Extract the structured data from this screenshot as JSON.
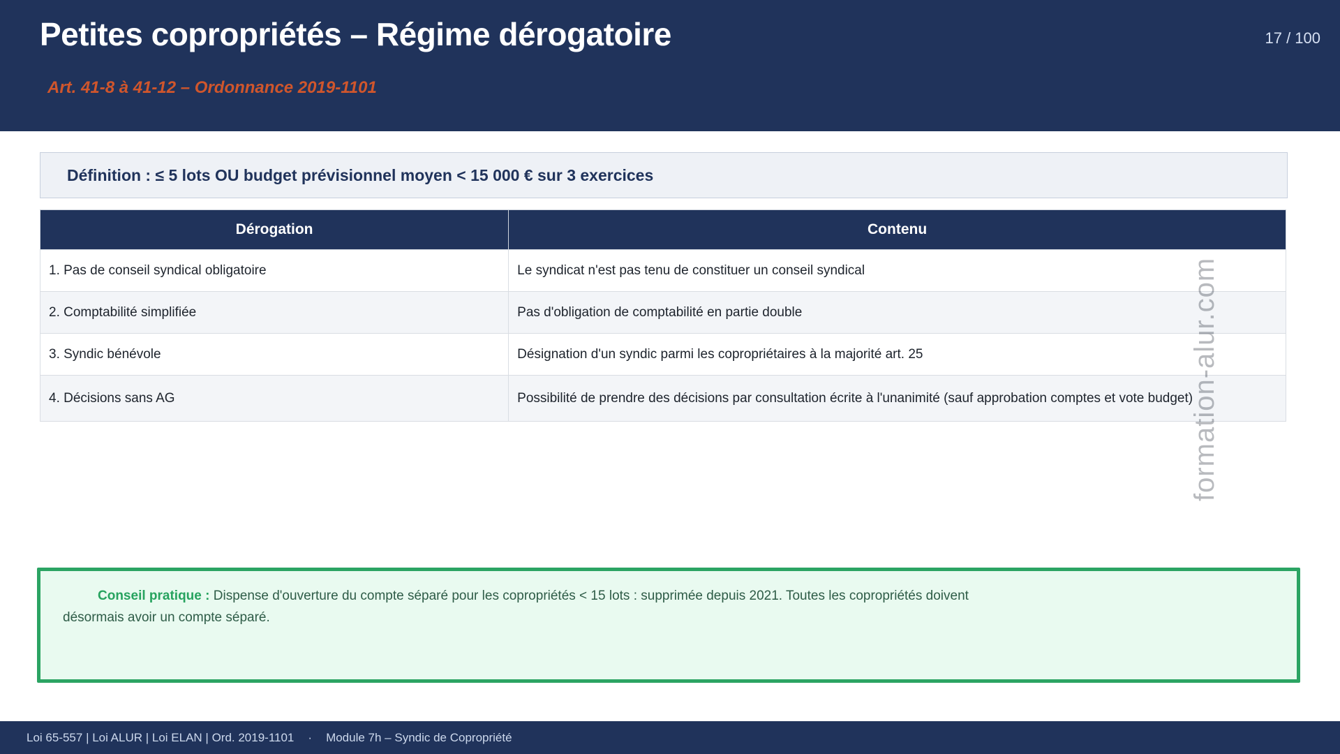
{
  "header": {
    "title": "Petites copropriétés – Régime dérogatoire",
    "subtitle": "Art. 41-8 à 41-12 – Ordonnance 2019-1101",
    "page_number": "17 / 100"
  },
  "definition": {
    "text": "Définition : ≤ 5 lots OU budget prévisionnel moyen < 15 000 € sur 3 exercices"
  },
  "table": {
    "headers": [
      "Dérogation",
      "Contenu"
    ],
    "rows": [
      [
        "1. Pas de conseil syndical obligatoire",
        "Le syndicat n'est pas tenu de constituer un conseil syndical"
      ],
      [
        "2. Comptabilité simplifiée",
        "Pas d'obligation de comptabilité en partie double"
      ],
      [
        "3. Syndic bénévole",
        "Désignation d'un syndic parmi les copropriétaires à la majorité art. 25"
      ],
      [
        "4. Décisions sans AG",
        "Possibilité de prendre des décisions par consultation écrite à l'unanimité (sauf approbation comptes et vote budget)"
      ]
    ]
  },
  "tip": {
    "label": "Conseil pratique :",
    "text": "Dispense d'ouverture du compte séparé pour les copropriétés < 15 lots : supprimée depuis 2021. Toutes les copropriétés doivent désormais avoir un compte séparé."
  },
  "watermark": {
    "text": "formation-alur.com"
  },
  "footer": {
    "laws": "Loi 65-557 | Loi ALUR | Loi ELAN | Ord. 2019-1101",
    "separator": "·",
    "module": "Module 7h – Syndic de Copropriété"
  },
  "colors": {
    "navy": "#20335b",
    "accent_orange": "#d0562c",
    "accent_green": "#2ba463",
    "green_label": "#27a35f",
    "green_background": "#e9faf0",
    "definition_background": "#eef1f6",
    "zebra_row": "#f3f5f8",
    "watermark_gray": "#b4b7bb",
    "page_number_text": "#d6e0f2",
    "footer_text": "#ccd8ec"
  }
}
